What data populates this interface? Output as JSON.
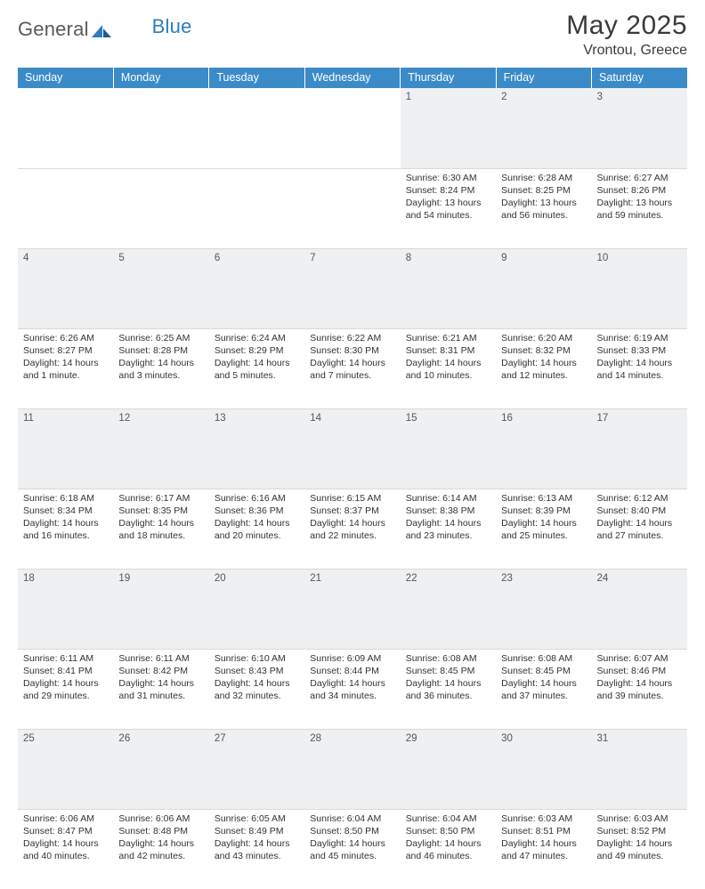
{
  "brand": {
    "part1": "General",
    "part2": "Blue",
    "logo_color": "#2e7cc0"
  },
  "title": "May 2025",
  "location": "Vrontou, Greece",
  "colors": {
    "header_bg": "#3b8bc9",
    "header_fg": "#ffffff",
    "daynum_bg": "#eef0f2",
    "text": "#333333",
    "grid": "#d9d9d9"
  },
  "columns": [
    "Sunday",
    "Monday",
    "Tuesday",
    "Wednesday",
    "Thursday",
    "Friday",
    "Saturday"
  ],
  "weeks": [
    [
      null,
      null,
      null,
      null,
      {
        "n": "1",
        "sunrise": "6:30 AM",
        "sunset": "8:24 PM",
        "daylight": "13 hours and 54 minutes."
      },
      {
        "n": "2",
        "sunrise": "6:28 AM",
        "sunset": "8:25 PM",
        "daylight": "13 hours and 56 minutes."
      },
      {
        "n": "3",
        "sunrise": "6:27 AM",
        "sunset": "8:26 PM",
        "daylight": "13 hours and 59 minutes."
      }
    ],
    [
      {
        "n": "4",
        "sunrise": "6:26 AM",
        "sunset": "8:27 PM",
        "daylight": "14 hours and 1 minute."
      },
      {
        "n": "5",
        "sunrise": "6:25 AM",
        "sunset": "8:28 PM",
        "daylight": "14 hours and 3 minutes."
      },
      {
        "n": "6",
        "sunrise": "6:24 AM",
        "sunset": "8:29 PM",
        "daylight": "14 hours and 5 minutes."
      },
      {
        "n": "7",
        "sunrise": "6:22 AM",
        "sunset": "8:30 PM",
        "daylight": "14 hours and 7 minutes."
      },
      {
        "n": "8",
        "sunrise": "6:21 AM",
        "sunset": "8:31 PM",
        "daylight": "14 hours and 10 minutes."
      },
      {
        "n": "9",
        "sunrise": "6:20 AM",
        "sunset": "8:32 PM",
        "daylight": "14 hours and 12 minutes."
      },
      {
        "n": "10",
        "sunrise": "6:19 AM",
        "sunset": "8:33 PM",
        "daylight": "14 hours and 14 minutes."
      }
    ],
    [
      {
        "n": "11",
        "sunrise": "6:18 AM",
        "sunset": "8:34 PM",
        "daylight": "14 hours and 16 minutes."
      },
      {
        "n": "12",
        "sunrise": "6:17 AM",
        "sunset": "8:35 PM",
        "daylight": "14 hours and 18 minutes."
      },
      {
        "n": "13",
        "sunrise": "6:16 AM",
        "sunset": "8:36 PM",
        "daylight": "14 hours and 20 minutes."
      },
      {
        "n": "14",
        "sunrise": "6:15 AM",
        "sunset": "8:37 PM",
        "daylight": "14 hours and 22 minutes."
      },
      {
        "n": "15",
        "sunrise": "6:14 AM",
        "sunset": "8:38 PM",
        "daylight": "14 hours and 23 minutes."
      },
      {
        "n": "16",
        "sunrise": "6:13 AM",
        "sunset": "8:39 PM",
        "daylight": "14 hours and 25 minutes."
      },
      {
        "n": "17",
        "sunrise": "6:12 AM",
        "sunset": "8:40 PM",
        "daylight": "14 hours and 27 minutes."
      }
    ],
    [
      {
        "n": "18",
        "sunrise": "6:11 AM",
        "sunset": "8:41 PM",
        "daylight": "14 hours and 29 minutes."
      },
      {
        "n": "19",
        "sunrise": "6:11 AM",
        "sunset": "8:42 PM",
        "daylight": "14 hours and 31 minutes."
      },
      {
        "n": "20",
        "sunrise": "6:10 AM",
        "sunset": "8:43 PM",
        "daylight": "14 hours and 32 minutes."
      },
      {
        "n": "21",
        "sunrise": "6:09 AM",
        "sunset": "8:44 PM",
        "daylight": "14 hours and 34 minutes."
      },
      {
        "n": "22",
        "sunrise": "6:08 AM",
        "sunset": "8:45 PM",
        "daylight": "14 hours and 36 minutes."
      },
      {
        "n": "23",
        "sunrise": "6:08 AM",
        "sunset": "8:45 PM",
        "daylight": "14 hours and 37 minutes."
      },
      {
        "n": "24",
        "sunrise": "6:07 AM",
        "sunset": "8:46 PM",
        "daylight": "14 hours and 39 minutes."
      }
    ],
    [
      {
        "n": "25",
        "sunrise": "6:06 AM",
        "sunset": "8:47 PM",
        "daylight": "14 hours and 40 minutes."
      },
      {
        "n": "26",
        "sunrise": "6:06 AM",
        "sunset": "8:48 PM",
        "daylight": "14 hours and 42 minutes."
      },
      {
        "n": "27",
        "sunrise": "6:05 AM",
        "sunset": "8:49 PM",
        "daylight": "14 hours and 43 minutes."
      },
      {
        "n": "28",
        "sunrise": "6:04 AM",
        "sunset": "8:50 PM",
        "daylight": "14 hours and 45 minutes."
      },
      {
        "n": "29",
        "sunrise": "6:04 AM",
        "sunset": "8:50 PM",
        "daylight": "14 hours and 46 minutes."
      },
      {
        "n": "30",
        "sunrise": "6:03 AM",
        "sunset": "8:51 PM",
        "daylight": "14 hours and 47 minutes."
      },
      {
        "n": "31",
        "sunrise": "6:03 AM",
        "sunset": "8:52 PM",
        "daylight": "14 hours and 49 minutes."
      }
    ]
  ],
  "labels": {
    "sunrise": "Sunrise: ",
    "sunset": "Sunset: ",
    "daylight": "Daylight: "
  }
}
